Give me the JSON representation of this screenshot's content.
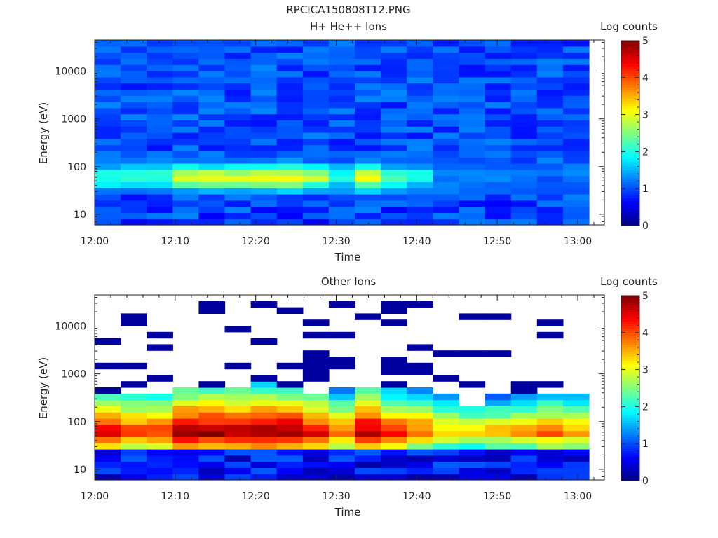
{
  "main_title": "RPCICA150808T12.PNG",
  "chart_data": [
    {
      "type": "heatmap",
      "title": "H+ He++ Ions",
      "xlabel": "Time",
      "ylabel": "Energy (eV)",
      "x_ticks": [
        "12:00",
        "12:10",
        "12:20",
        "12:30",
        "12:40",
        "12:50",
        "13:00"
      ],
      "x_range": [
        "12:00",
        "13:02"
      ],
      "y_scale": "log",
      "y_ticks": [
        "10",
        "100",
        "1000",
        "10000"
      ],
      "ylim": [
        6,
        45000
      ],
      "colorbar": {
        "label": "Log counts",
        "ticks": [
          "0",
          "1",
          "2",
          "3",
          "4",
          "5"
        ],
        "range": [
          0,
          5
        ],
        "colormap": "jet"
      },
      "time_bins": 19,
      "energy_bins": 30,
      "log_counts_profile": {
        "description_of_columns": "peak log-count per time bin in the low-energy population",
        "peak_energy_eV": 60,
        "column_peak_log_counts": [
          2.1,
          2.2,
          2.2,
          3.1,
          3.0,
          3.0,
          3.1,
          3.2,
          2.8,
          2.0,
          3.2,
          2.2,
          2.0,
          1.3,
          1.2,
          1.3,
          1.1,
          1.1,
          1.3
        ],
        "background_log_counts": 1.0
      }
    },
    {
      "type": "heatmap",
      "title": "Other Ions",
      "xlabel": "Time",
      "ylabel": "Energy (eV)",
      "x_ticks": [
        "12:00",
        "12:10",
        "12:20",
        "12:30",
        "12:40",
        "12:50",
        "13:00"
      ],
      "x_range": [
        "12:00",
        "13:02"
      ],
      "y_scale": "log",
      "y_ticks": [
        "10",
        "100",
        "1000",
        "10000"
      ],
      "ylim": [
        6,
        45000
      ],
      "colorbar": {
        "label": "Log counts",
        "ticks": [
          "0",
          "1",
          "2",
          "3",
          "4",
          "5"
        ],
        "range": [
          0,
          5
        ],
        "colormap": "jet"
      },
      "time_bins": 19,
      "energy_bins": 30,
      "log_counts_profile": {
        "peak_energy_eV": 60,
        "column_peak_log_counts": [
          4.5,
          4.3,
          4.3,
          5.0,
          5.0,
          5.0,
          5.0,
          5.0,
          4.6,
          4.1,
          4.9,
          4.4,
          4.1,
          3.6,
          3.5,
          3.6,
          3.7,
          4.0,
          3.8
        ],
        "column_upper_extent_eV": [
          380,
          380,
          420,
          600,
          520,
          580,
          680,
          560,
          400,
          450,
          500,
          480,
          500,
          380,
          220,
          350,
          380,
          360,
          350
        ],
        "sparse_high_energy_background_log_counts": 0.1
      }
    }
  ]
}
